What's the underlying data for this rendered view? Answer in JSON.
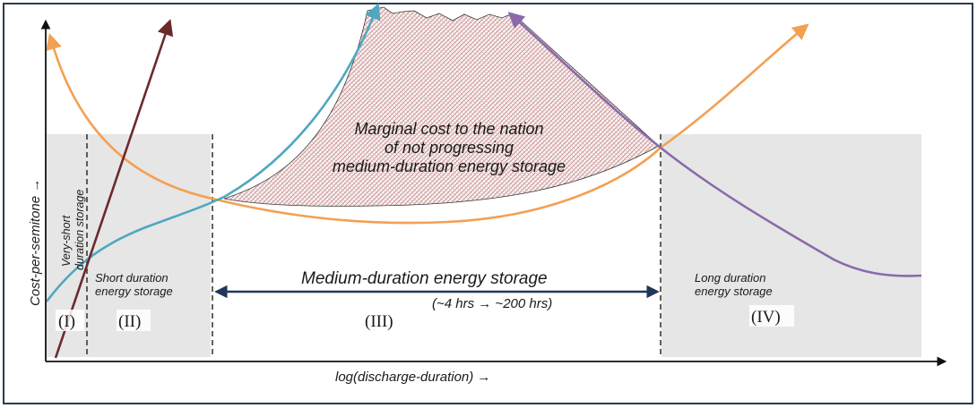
{
  "axes": {
    "y_label": "Cost-per-semitone →",
    "x_label": "log(discharge-duration) →"
  },
  "regions": [
    {
      "numeral": "(I)",
      "label_lines": [
        "Very-short",
        "duration storage"
      ]
    },
    {
      "numeral": "(II)",
      "label_lines": [
        "Short duration",
        "energy storage"
      ]
    },
    {
      "numeral": "(III)",
      "label_lines": [
        "Medium-duration energy storage"
      ],
      "sublabel": "(~4 hrs → ~200 hrs)"
    },
    {
      "numeral": "(IV)",
      "label_lines": [
        "Long duration",
        "energy storage"
      ]
    }
  ],
  "annotation": {
    "lines": [
      "Marginal cost to the nation",
      "of not progressing",
      "medium-duration energy storage"
    ]
  },
  "colors": {
    "frame": "#2a3a52",
    "orange_curve": "#f4a052",
    "blue_curve": "#4fa8c0",
    "brown_line": "#6b2a2a",
    "purple_curve": "#8a6aa8",
    "arrow_navy": "#1f3658",
    "shade": "#e6e6e6",
    "hatch": "#c28a8a"
  }
}
